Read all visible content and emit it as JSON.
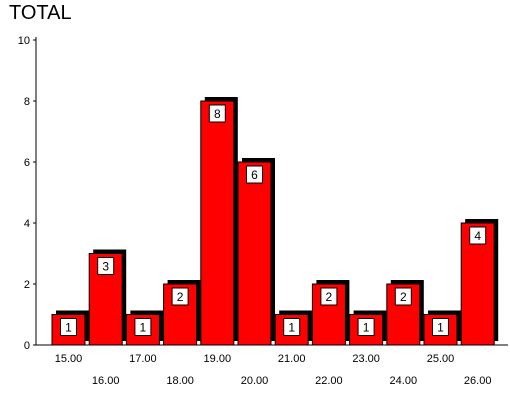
{
  "chart_data": {
    "type": "bar",
    "title": "TOTAL",
    "xlabel": "",
    "ylabel": "",
    "categories": [
      "15.00",
      "16.00",
      "17.00",
      "18.00",
      "19.00",
      "20.00",
      "21.00",
      "22.00",
      "23.00",
      "24.00",
      "25.00",
      "26.00"
    ],
    "values": [
      1,
      3,
      1,
      2,
      8,
      6,
      1,
      2,
      1,
      2,
      1,
      4
    ],
    "ylim": [
      0,
      10
    ],
    "yticks": [
      0,
      2,
      4,
      6,
      8,
      10
    ],
    "grid": false,
    "legend": "none",
    "data_labels": true,
    "bar_color": "#ff0000",
    "shadow_color": "#000000"
  }
}
